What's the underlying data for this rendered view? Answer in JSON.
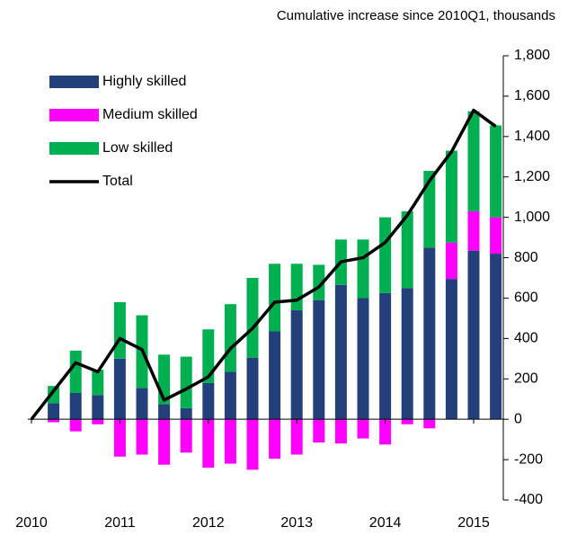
{
  "chart_data": {
    "type": "bar",
    "title": "Cumulative increase since 2010Q1, thousands",
    "categories": [
      "2010",
      null,
      null,
      null,
      "2011",
      null,
      null,
      null,
      "2012",
      null,
      null,
      null,
      "2013",
      null,
      null,
      null,
      "2014",
      null,
      null,
      null,
      "2015",
      null
    ],
    "series": [
      {
        "name": "Highly skilled",
        "color": "#24407a",
        "values": [
          0,
          80,
          130,
          120,
          300,
          155,
          75,
          55,
          180,
          235,
          305,
          435,
          540,
          590,
          665,
          600,
          625,
          650,
          850,
          695,
          835,
          820
        ]
      },
      {
        "name": "Medium skilled",
        "color": "#ff00ff",
        "values": [
          0,
          -15,
          -60,
          -25,
          -185,
          -175,
          -225,
          -165,
          -240,
          -220,
          -250,
          -195,
          -175,
          -115,
          -120,
          -95,
          -125,
          -25,
          -45,
          180,
          195,
          180
        ]
      },
      {
        "name": "Low skilled",
        "color": "#00b050",
        "values": [
          0,
          85,
          210,
          125,
          280,
          360,
          245,
          255,
          265,
          335,
          395,
          335,
          230,
          175,
          225,
          290,
          375,
          380,
          380,
          455,
          495,
          455
        ]
      },
      {
        "name": "Total",
        "type": "line",
        "color": "#000000",
        "values": [
          0,
          140,
          280,
          235,
          400,
          345,
          95,
          150,
          210,
          350,
          450,
          580,
          590,
          655,
          780,
          800,
          875,
          1010,
          1180,
          1325,
          1530,
          1450
        ]
      }
    ],
    "ylim": [
      -400,
      1800
    ],
    "yticks": [
      -400,
      -200,
      0,
      200,
      400,
      600,
      800,
      {
        "value": 1000,
        "label": "1,000"
      },
      {
        "value": 1200,
        "label": "1,200"
      },
      {
        "value": 1400,
        "label": "1,400"
      },
      {
        "value": 1600,
        "label": "1,600"
      },
      {
        "value": 1800,
        "label": "1,800"
      }
    ],
    "legend": "upper left"
  }
}
